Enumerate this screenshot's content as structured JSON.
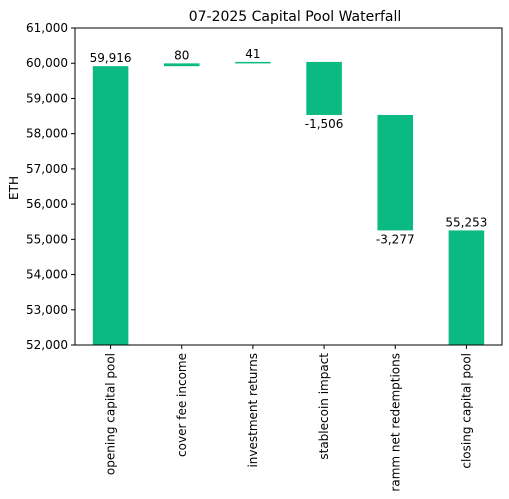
{
  "chart_data": {
    "type": "bar",
    "subtype": "waterfall",
    "title": "07-2025 Capital Pool Waterfall",
    "xlabel": "",
    "ylabel": "ETH",
    "ylim": [
      52000,
      61000
    ],
    "yticks": [
      52000,
      53000,
      54000,
      55000,
      56000,
      57000,
      58000,
      59000,
      60000,
      61000
    ],
    "ytick_labels": [
      "52,000",
      "53,000",
      "54,000",
      "55,000",
      "56,000",
      "57,000",
      "58,000",
      "59,000",
      "60,000",
      "61,000"
    ],
    "grid": false,
    "bar_color": "#0bba83",
    "categories": [
      "opening capital pool",
      "cover fee income",
      "investment returns",
      "stablecoin impact",
      "ramm net redemptions",
      "closing capital pool"
    ],
    "values": [
      59916,
      80,
      41,
      -1506,
      -3277,
      55253
    ],
    "bar_kind": [
      "total",
      "delta",
      "delta",
      "delta",
      "delta",
      "total"
    ],
    "data_labels": [
      "59,916",
      "80",
      "41",
      "-1,506",
      "-3,277",
      "55,253"
    ]
  }
}
